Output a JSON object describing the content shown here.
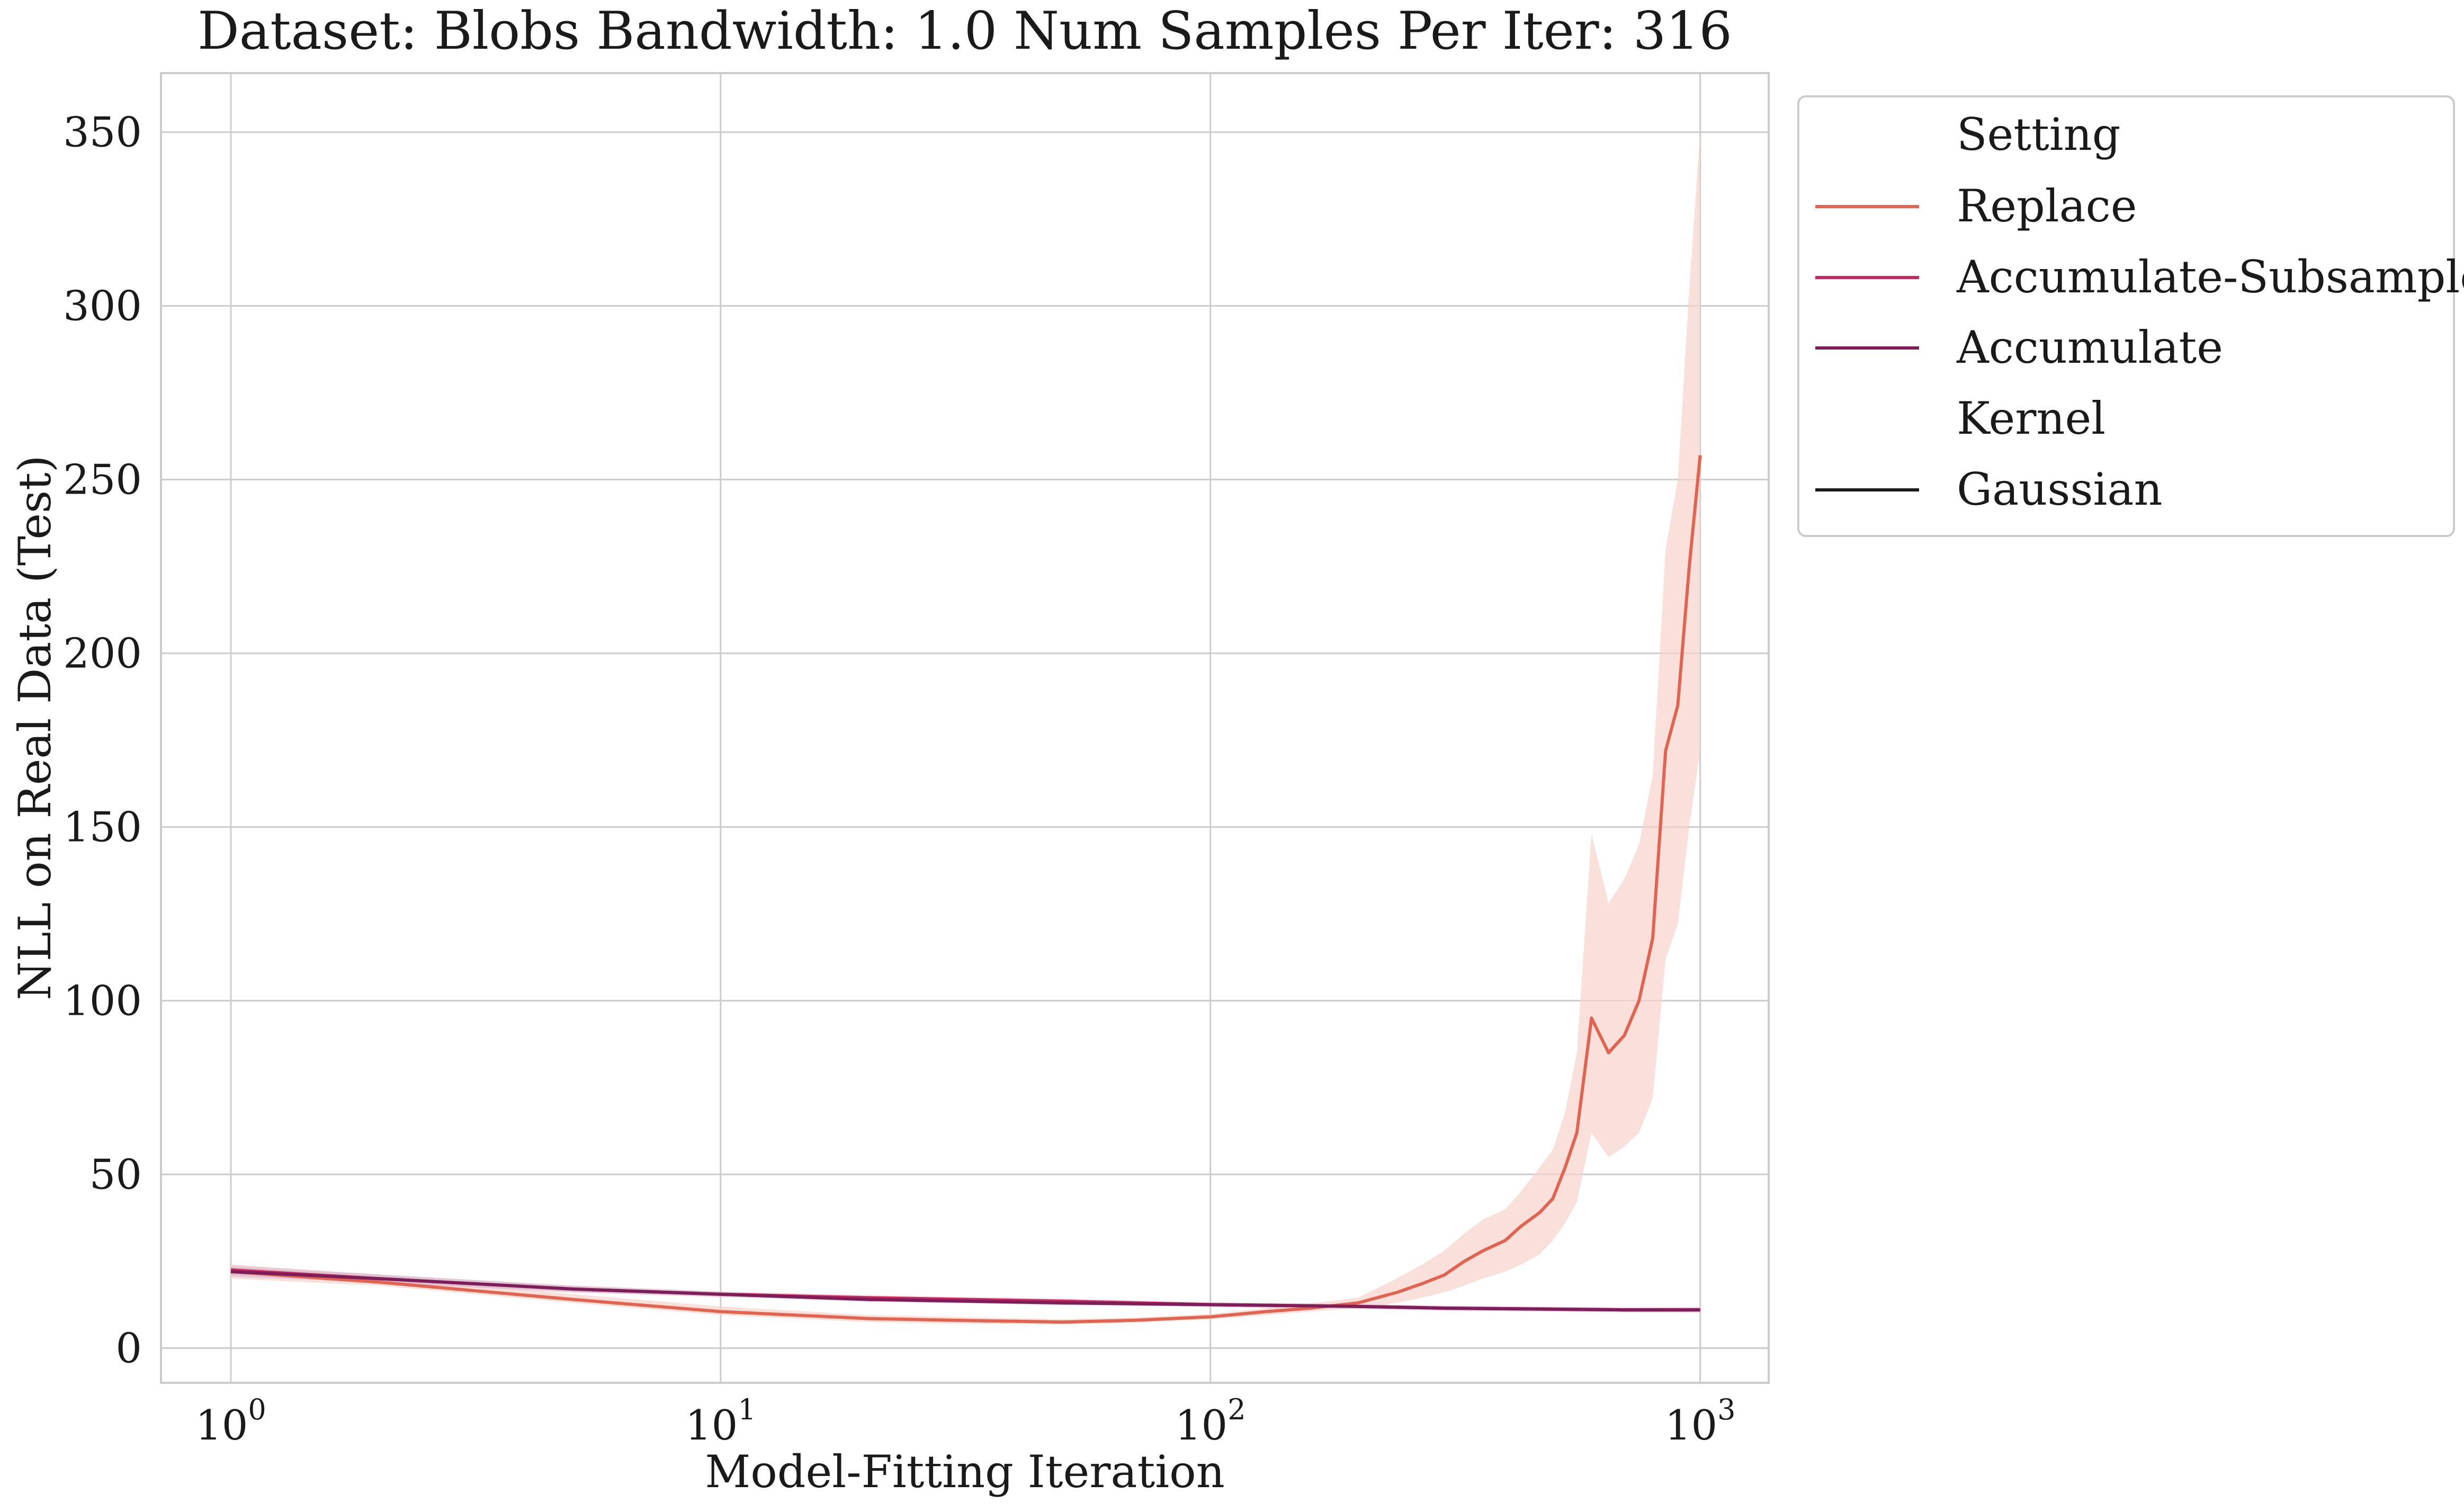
{
  "chart_data": {
    "type": "line",
    "title": "Dataset: Blobs Bandwidth: 1.0 Num Samples Per Iter: 316",
    "xlabel": "Model-Fitting Iteration",
    "ylabel": "NLL on Real Data (Test)",
    "xscale": "log",
    "xlim": [
      0.72,
      1380
    ],
    "ylim": [
      -10,
      367
    ],
    "grid": true,
    "x_ticks": [
      {
        "value": 1,
        "base": "10",
        "exp": "0"
      },
      {
        "value": 10,
        "base": "10",
        "exp": "1"
      },
      {
        "value": 100,
        "base": "10",
        "exp": "2"
      },
      {
        "value": 1000,
        "base": "10",
        "exp": "3"
      }
    ],
    "y_ticks": [
      0,
      50,
      100,
      150,
      200,
      250,
      300,
      350
    ],
    "legend": {
      "placement": "outside-right",
      "hue_title": "Setting",
      "style_title": "Kernel",
      "style_entries": [
        {
          "label": "Gaussian",
          "color": "#1a1a1a"
        }
      ]
    },
    "series": [
      {
        "name": "Replace",
        "color": "#e2634f",
        "band_color": "#f6d3cb",
        "x": [
          1,
          2,
          5,
          10,
          20,
          30,
          50,
          70,
          100,
          130,
          160,
          200,
          240,
          270,
          300,
          330,
          360,
          400,
          430,
          470,
          500,
          530,
          560,
          600,
          650,
          700,
          750,
          800,
          850,
          900,
          950,
          1000
        ],
        "y": [
          22,
          19,
          14,
          10.5,
          8.5,
          8,
          7.5,
          8,
          9,
          10.5,
          11.5,
          13,
          16,
          18.5,
          21,
          25,
          28,
          31,
          35,
          39,
          43,
          52,
          62,
          95,
          85,
          90,
          100,
          118,
          172,
          185,
          225,
          257
        ],
        "lower": [
          20,
          18,
          13,
          9.5,
          7.5,
          7,
          6.8,
          7.3,
          8.3,
          9.5,
          10.5,
          11.5,
          13,
          14.5,
          16,
          18,
          20,
          22,
          24,
          27,
          31,
          36,
          42,
          62,
          55,
          58,
          62,
          72,
          112,
          122,
          150,
          172
        ],
        "upper": [
          24,
          21,
          15.5,
          12,
          9.5,
          9,
          8.3,
          8.8,
          9.8,
          11.5,
          12.8,
          14.5,
          20,
          24,
          28,
          33,
          37,
          40,
          45,
          52,
          57,
          68,
          85,
          148,
          128,
          135,
          145,
          165,
          230,
          250,
          305,
          350
        ]
      },
      {
        "name": "Accumulate-Subsample",
        "color": "#c8285f",
        "band_color": "#efc4d2",
        "x": [
          1,
          2,
          5,
          10,
          20,
          50,
          100,
          200,
          300,
          500,
          700,
          1000
        ],
        "y": [
          22.5,
          20,
          17,
          15.5,
          14.5,
          13.5,
          12.5,
          12,
          11.5,
          11.2,
          11,
          11
        ],
        "lower": [
          21,
          18.8,
          16,
          14.7,
          13.8,
          12.8,
          11.8,
          11.3,
          10.8,
          10.5,
          10.3,
          10.2
        ],
        "upper": [
          24,
          21.2,
          18,
          16.3,
          15.2,
          14.2,
          13.2,
          12.7,
          12.2,
          11.9,
          11.7,
          11.8
        ]
      },
      {
        "name": "Accumulate",
        "color": "#7d1e5a",
        "band_color": "#d8bfd0",
        "x": [
          1,
          2,
          5,
          10,
          20,
          50,
          100,
          200,
          300,
          500,
          700,
          1000
        ],
        "y": [
          22,
          20,
          17,
          15.5,
          14,
          13,
          12.5,
          12,
          11.5,
          11.2,
          11,
          11
        ],
        "lower": [
          20.6,
          18.8,
          16.1,
          14.8,
          13.4,
          12.4,
          11.9,
          11.4,
          10.9,
          10.6,
          10.4,
          10.4
        ],
        "upper": [
          23.4,
          21.2,
          17.9,
          16.2,
          14.6,
          13.6,
          13.1,
          12.6,
          12.1,
          11.8,
          11.6,
          11.6
        ]
      }
    ]
  }
}
